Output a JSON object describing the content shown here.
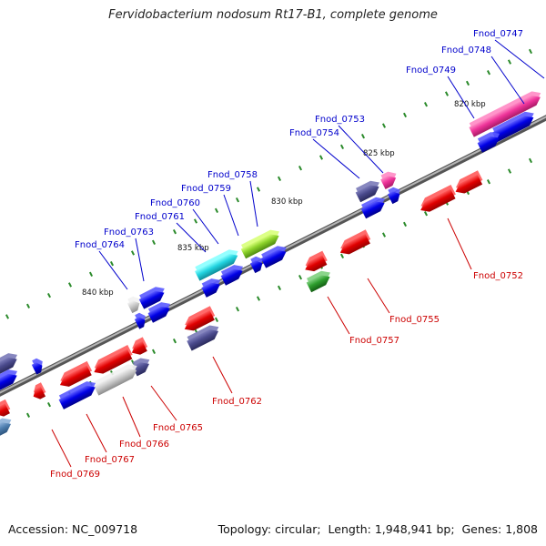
{
  "title": "Fervidobacterium nodosum Rt17-B1, complete genome",
  "footer": {
    "accession_label": "Accession:",
    "accession": "NC_009718",
    "topology_label": "Topology:",
    "topology": "circular",
    "length_label": "Length:",
    "length": "1,948,941 bp",
    "genes_label": "Genes:",
    "genes": "1,808"
  },
  "colors": {
    "forward_label": "#0000cc",
    "reverse_label": "#cc0000",
    "backbone": "#777777",
    "tick": "#2a8a2a"
  },
  "scale_labels": [
    "820 kbp",
    "825 kbp",
    "830 kbp",
    "835 kbp",
    "840 kbp"
  ],
  "forward_labels": [
    "Fnod_0747",
    "Fnod_0748",
    "Fnod_0749",
    "Fnod_0753",
    "Fnod_0754",
    "Fnod_0758",
    "Fnod_0759",
    "Fnod_0760",
    "Fnod_0761",
    "Fnod_0763",
    "Fnod_0764"
  ],
  "reverse_labels": [
    "Fnod_0752",
    "Fnod_0755",
    "Fnod_0757",
    "Fnod_0762",
    "Fnod_0765",
    "Fnod_0766",
    "Fnod_0767",
    "Fnod_0769"
  ]
}
